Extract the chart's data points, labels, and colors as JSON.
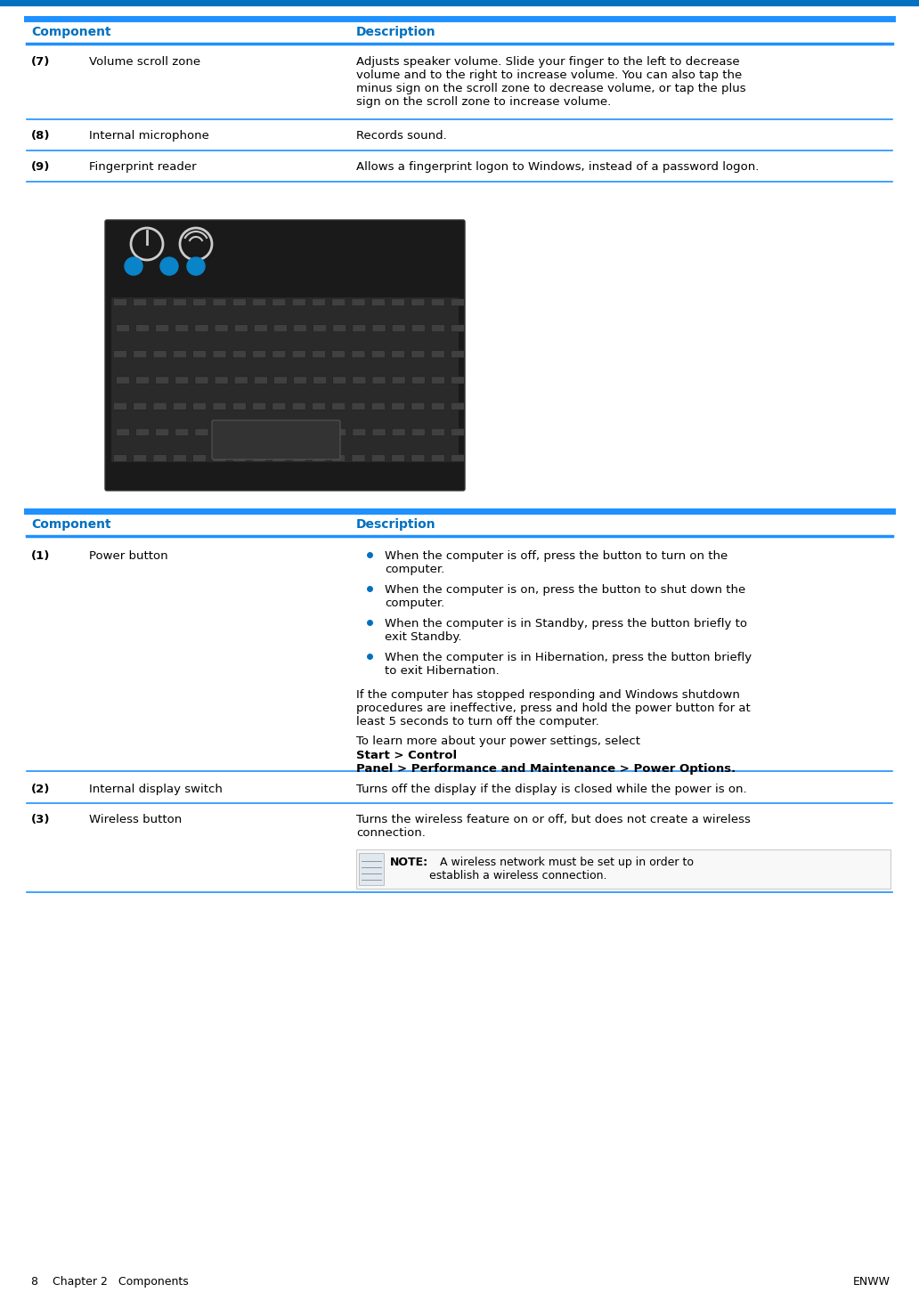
{
  "bg_color": "#ffffff",
  "blue_header": "#0070c0",
  "black_text": "#000000",
  "line_color": "#1e90ff",
  "figsize": [
    10.32,
    14.51
  ],
  "dpi": 100,
  "top_table": {
    "headers": [
      "Component",
      "Description"
    ],
    "rows": [
      {
        "num": "(7)",
        "component": "Volume scroll zone",
        "description": "Adjusts speaker volume. Slide your finger to the left to decrease\nvolume and to the right to increase volume. You can also tap the\nminus sign on the scroll zone to decrease volume, or tap the plus\nsign on the scroll zone to increase volume."
      },
      {
        "num": "(8)",
        "component": "Internal microphone",
        "description": "Records sound."
      },
      {
        "num": "(9)",
        "component": "Fingerprint reader",
        "description": "Allows a fingerprint logon to Windows, instead of a password logon."
      }
    ]
  },
  "bottom_table": {
    "headers": [
      "Component",
      "Description"
    ],
    "rows": [
      {
        "num": "(1)",
        "component": "Power button",
        "bullets": [
          "When the computer is off, press the button to turn on the\ncomputer.",
          "When the computer is on, press the button to shut down the\ncomputer.",
          "When the computer is in Standby, press the button briefly to\nexit Standby.",
          "When the computer is in Hibernation, press the button briefly\nto exit Hibernation."
        ],
        "extra_normal": "If the computer has stopped responding and Windows shutdown\nprocedures are ineffective, press and hold the power button for at\nleast 5 seconds to turn off the computer.",
        "extra_bold_prefix": "To learn more about your power settings, select ",
        "extra_bold": "Start > Control\nPanel > Performance and Maintenance > Power Options",
        "extra_bold_suffix": "."
      },
      {
        "num": "(2)",
        "component": "Internal display switch",
        "description": "Turns off the display if the display is closed while the power is on."
      },
      {
        "num": "(3)",
        "component": "Wireless button",
        "description": "Turns the wireless feature on or off, but does not create a wireless\nconnection.",
        "note_label": "NOTE:",
        "note_text": "   A wireless network must be set up in order to\nestablish a wireless connection."
      }
    ]
  },
  "footer_left": "8    Chapter 2   Components",
  "footer_right": "ENWW"
}
